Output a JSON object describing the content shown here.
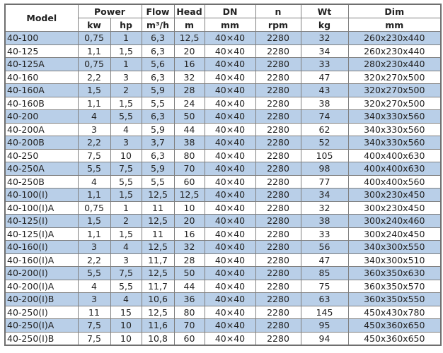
{
  "table": {
    "header_groups": [
      "Model",
      "Power",
      "Flow",
      "Head",
      "DN",
      "n",
      "Wt",
      "Dim"
    ],
    "units": [
      "kw",
      "hp",
      "m³/h",
      "m",
      "mm",
      "rpm",
      "kg",
      "mm"
    ],
    "rows": [
      [
        "40-100",
        "0,75",
        "1",
        "6,3",
        "12,5",
        "40×40",
        "2280",
        "32",
        "260x230x440"
      ],
      [
        "40-125",
        "1,1",
        "1,5",
        "6,3",
        "20",
        "40×40",
        "2280",
        "34",
        "260x230x440"
      ],
      [
        "40-125A",
        "0,75",
        "1",
        "5,6",
        "16",
        "40×40",
        "2280",
        "33",
        "280x230x440"
      ],
      [
        "40-160",
        "2,2",
        "3",
        "6,3",
        "32",
        "40×40",
        "2280",
        "47",
        "320x270x500"
      ],
      [
        "40-160A",
        "1,5",
        "2",
        "5,9",
        "28",
        "40×40",
        "2280",
        "43",
        "320x270x500"
      ],
      [
        "40-160B",
        "1,1",
        "1,5",
        "5,5",
        "24",
        "40×40",
        "2280",
        "38",
        "320x270x500"
      ],
      [
        "40-200",
        "4",
        "5,5",
        "6,3",
        "50",
        "40×40",
        "2280",
        "74",
        "340x330x560"
      ],
      [
        "40-200A",
        "3",
        "4",
        "5,9",
        "44",
        "40×40",
        "2280",
        "62",
        "340x330x560"
      ],
      [
        "40-200B",
        "2,2",
        "3",
        "3,7",
        "38",
        "40×40",
        "2280",
        "52",
        "340x330x560"
      ],
      [
        "40-250",
        "7,5",
        "10",
        "6,3",
        "80",
        "40×40",
        "2280",
        "105",
        "400x400x630"
      ],
      [
        "40-250A",
        "5,5",
        "7,5",
        "5,9",
        "70",
        "40×40",
        "2280",
        "98",
        "400x400x630"
      ],
      [
        "40-250B",
        "4",
        "5,5",
        "5,5",
        "60",
        "40×40",
        "2280",
        "77",
        "400x400x560"
      ],
      [
        "40-100(I)",
        "1,1",
        "1,5",
        "12,5",
        "12,5",
        "40×40",
        "2280",
        "34",
        "300x230x450"
      ],
      [
        "40-100(I)A",
        "0,75",
        "1",
        "11",
        "10",
        "40×40",
        "2280",
        "32",
        "300x230x450"
      ],
      [
        "40-125(I)",
        "1,5",
        "2",
        "12,5",
        "20",
        "40×40",
        "2280",
        "38",
        "300x240x460"
      ],
      [
        "40-125(I)A",
        "1,1",
        "1,5",
        "11",
        "16",
        "40×40",
        "2280",
        "33",
        "300x240x450"
      ],
      [
        "40-160(I)",
        "3",
        "4",
        "12,5",
        "32",
        "40×40",
        "2280",
        "56",
        "340x300x550"
      ],
      [
        "40-160(I)A",
        "2,2",
        "3",
        "11,7",
        "28",
        "40×40",
        "2280",
        "47",
        "340x300x510"
      ],
      [
        "40-200(I)",
        "5,5",
        "7,5",
        "12,5",
        "50",
        "40×40",
        "2280",
        "85",
        "360x350x630"
      ],
      [
        "40-200(I)A",
        "4",
        "5,5",
        "11,7",
        "44",
        "40×40",
        "2280",
        "75",
        "360x350x570"
      ],
      [
        "40-200(I)B",
        "3",
        "4",
        "10,6",
        "36",
        "40×40",
        "2280",
        "63",
        "360x350x550"
      ],
      [
        "40-250(I)",
        "11",
        "15",
        "12,5",
        "80",
        "40×40",
        "2280",
        "145",
        "450x430x780"
      ],
      [
        "40-250(I)A",
        "7,5",
        "10",
        "11,6",
        "70",
        "40×40",
        "2280",
        "95",
        "450x360x650"
      ],
      [
        "40-250(I)B",
        "7,5",
        "10",
        "10,8",
        "60",
        "40×40",
        "2280",
        "94",
        "450x360x650"
      ]
    ],
    "colors": {
      "alt_row": "#b9cfe8",
      "border": "#7f7f7f"
    }
  }
}
